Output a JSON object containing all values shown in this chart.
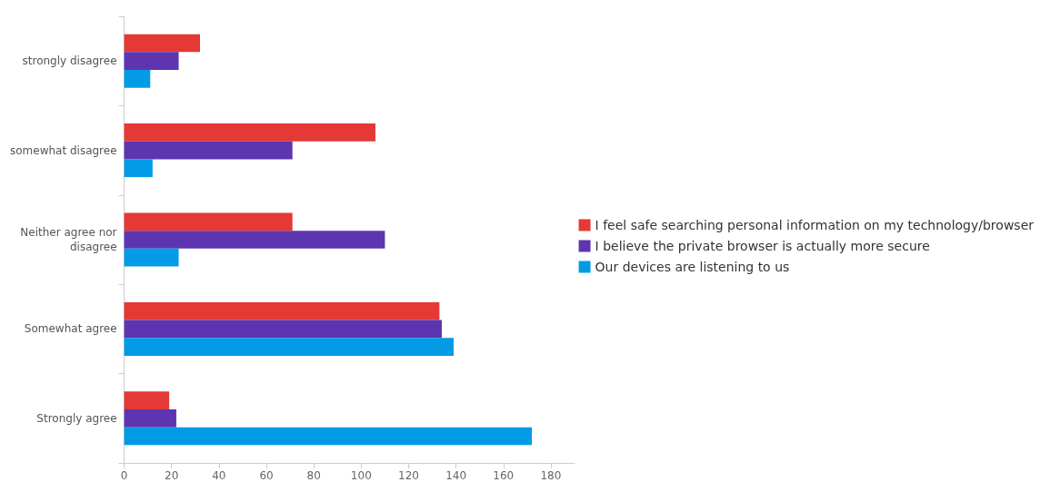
{
  "chart_data": {
    "type": "bar",
    "orientation": "horizontal",
    "categories": [
      "strongly disagree",
      "somewhat disagree",
      "Neither agree nor disagree",
      "Somewhat agree",
      "Strongly agree"
    ],
    "series": [
      {
        "name": "I feel safe searching personal information on my technology/browser",
        "color": "#e53935",
        "values": [
          32,
          106,
          71,
          133,
          19
        ]
      },
      {
        "name": "I believe the private browser is actually more secure",
        "color": "#5e35b1",
        "values": [
          23,
          71,
          110,
          134,
          22
        ]
      },
      {
        "name": "Our devices are listening to us",
        "color": "#039be5",
        "values": [
          11,
          12,
          23,
          139,
          172
        ]
      }
    ],
    "xlim": [
      0,
      190
    ],
    "xticks": [
      0,
      20,
      40,
      60,
      80,
      100,
      120,
      140,
      160,
      180
    ],
    "grid": false,
    "legend": "right"
  }
}
